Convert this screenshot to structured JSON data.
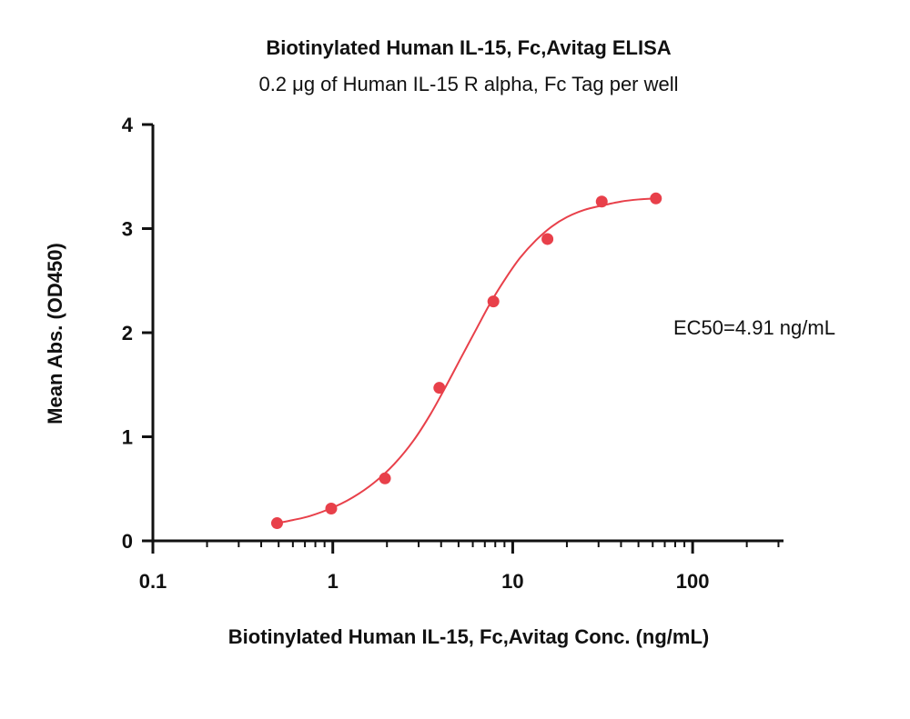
{
  "chart_data": {
    "type": "scatter",
    "title": "Biotinylated Human IL-15, Fc,Avitag ELISA",
    "subtitle": "0.2 μg of Human IL-15 R alpha, Fc Tag per well",
    "xlabel": "Biotinylated Human IL-15, Fc,Avitag Conc. (ng/mL)",
    "ylabel": "Mean Abs. (OD450)",
    "x_scale": "log",
    "xlim": [
      0.1,
      320
    ],
    "ylim": [
      0,
      4
    ],
    "x_ticks": [
      0.1,
      1,
      10,
      100
    ],
    "x_tick_labels": [
      "0.1",
      "1",
      "10",
      "100"
    ],
    "y_ticks": [
      0,
      1,
      2,
      3,
      4
    ],
    "y_tick_labels": [
      "0",
      "1",
      "2",
      "3",
      "4"
    ],
    "grid": false,
    "annotation": "EC50=4.91 ng/mL",
    "color": "#e8404a",
    "series": [
      {
        "x": [
          0.49,
          0.98,
          1.95,
          3.91,
          7.81,
          15.6,
          31.25,
          62.5
        ],
        "y": [
          0.17,
          0.31,
          0.6,
          1.47,
          2.3,
          2.9,
          3.26,
          3.29
        ],
        "fit": "4PL",
        "fit_curve": {
          "x": [
            0.49,
            0.6,
            0.75,
            1.0,
            1.3,
            1.7,
            2.2,
            2.8,
            3.5,
            4.3,
            5.2,
            6.3,
            7.6,
            9.2,
            11,
            13.5,
            16.5,
            20,
            25,
            31,
            40,
            50,
            62.5
          ],
          "y": [
            0.17,
            0.2,
            0.24,
            0.32,
            0.42,
            0.56,
            0.74,
            0.96,
            1.22,
            1.5,
            1.77,
            2.04,
            2.3,
            2.53,
            2.72,
            2.89,
            3.02,
            3.11,
            3.18,
            3.22,
            3.26,
            3.28,
            3.29
          ]
        }
      }
    ]
  }
}
